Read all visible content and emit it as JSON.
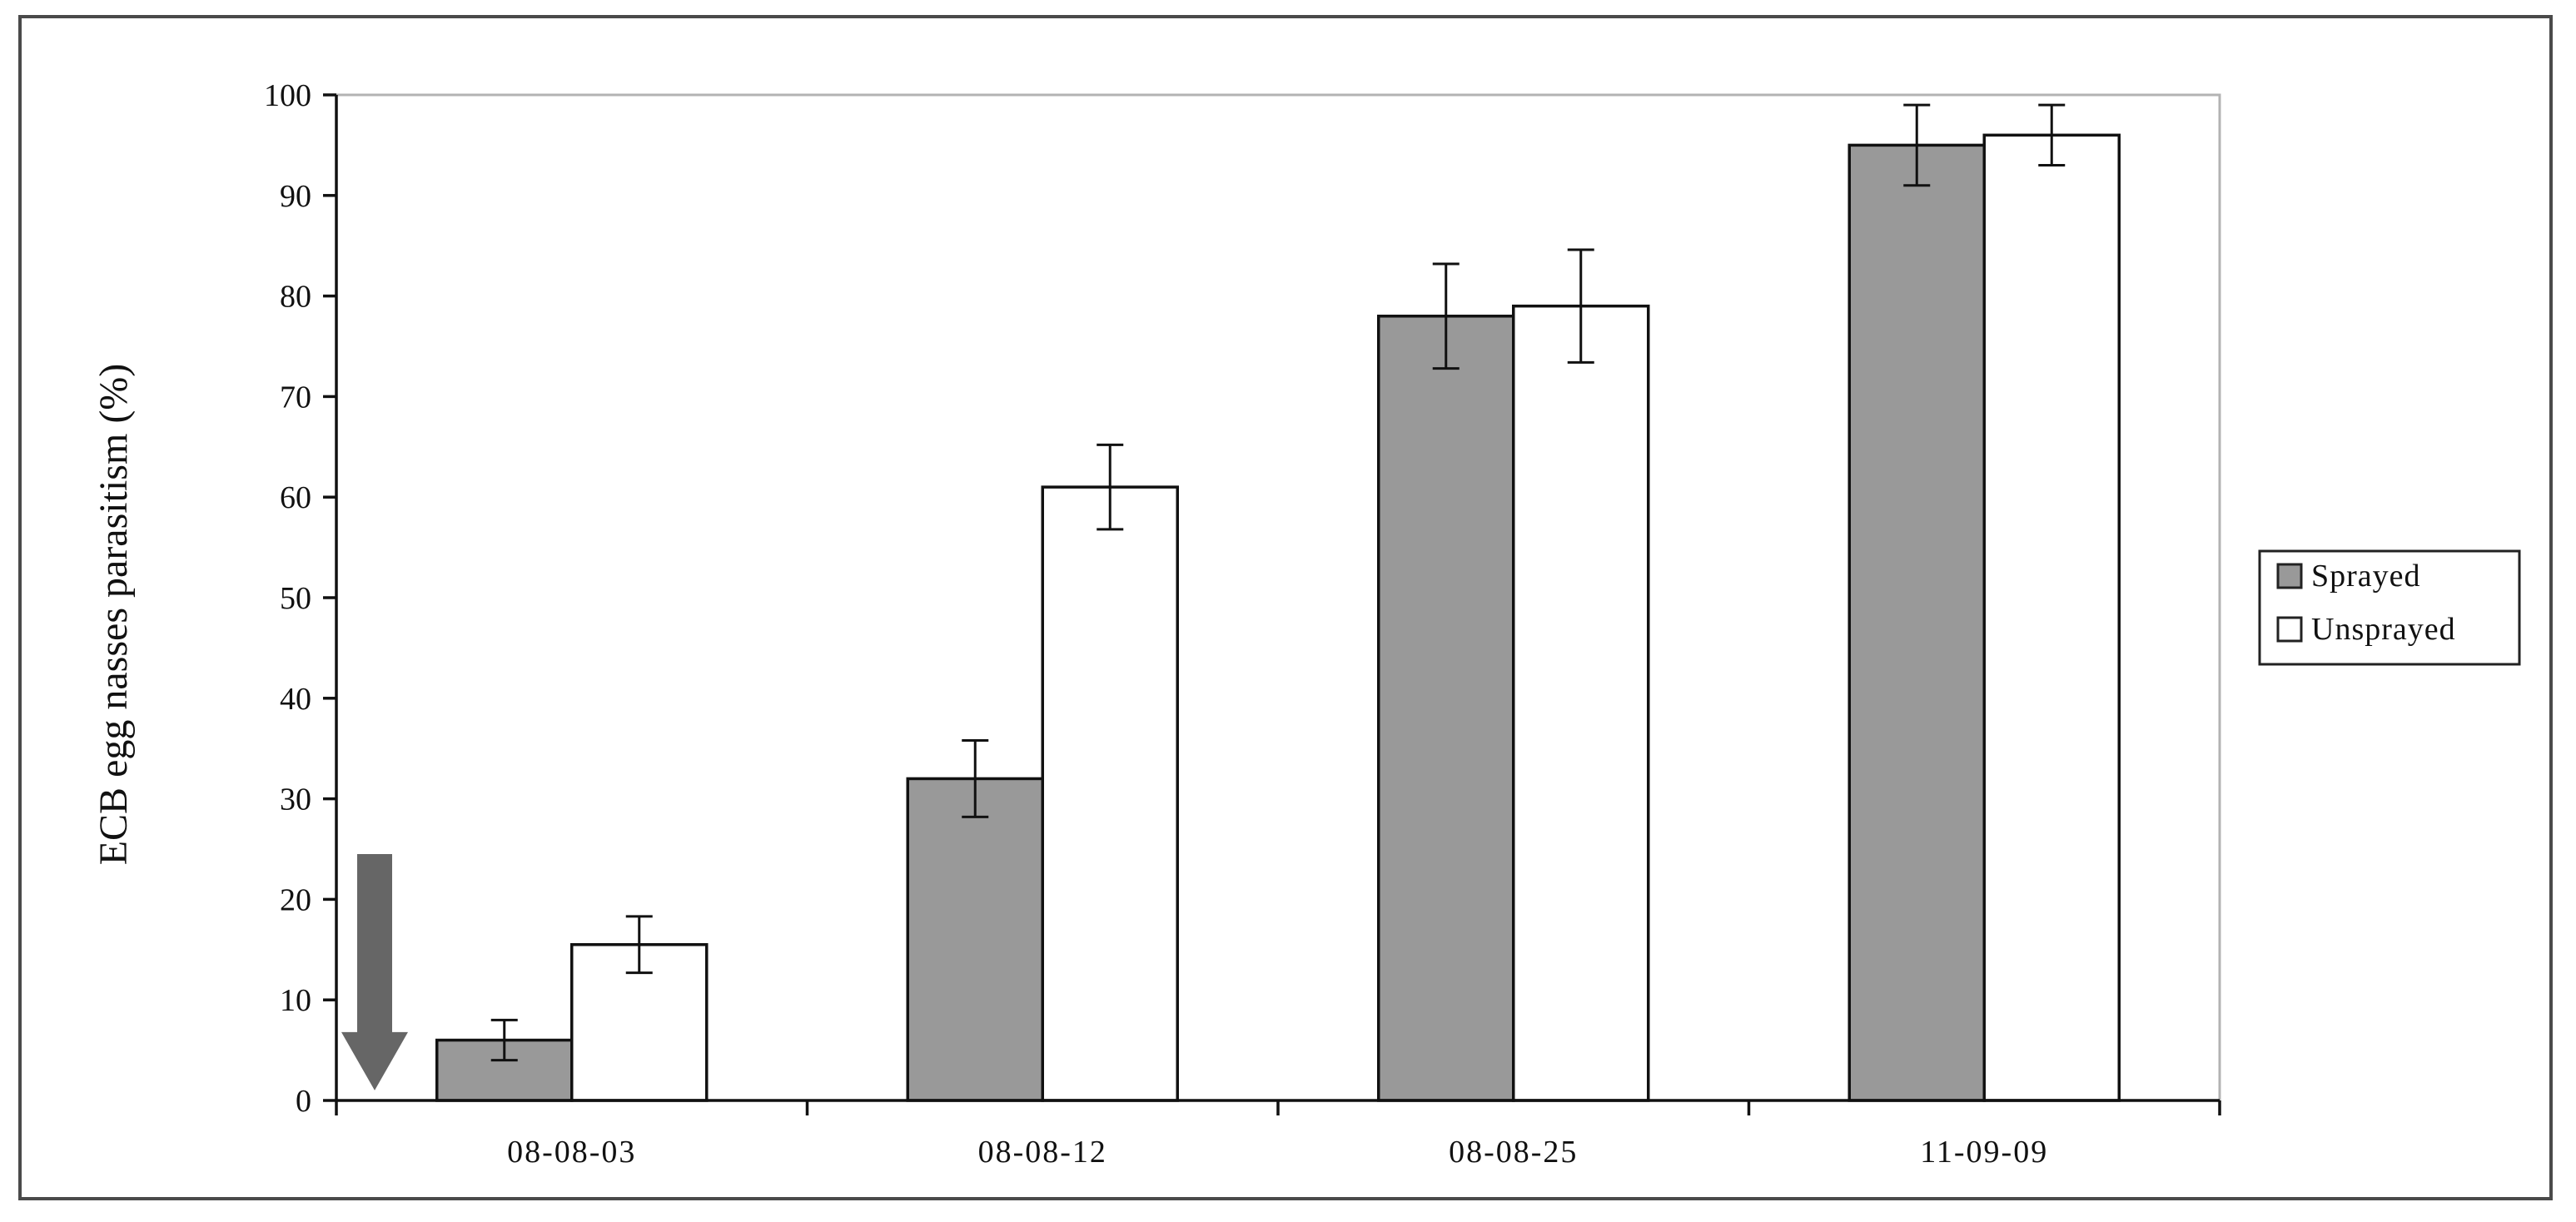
{
  "chart_data": {
    "type": "bar",
    "categories": [
      "08-08-03",
      "08-08-12",
      "08-08-25",
      "11-09-09"
    ],
    "series": [
      {
        "name": "Sprayed",
        "values": [
          6,
          32,
          78,
          95
        ],
        "error": [
          2,
          3.8,
          5.2,
          4
        ],
        "color": "#999999"
      },
      {
        "name": "Unsprayed",
        "values": [
          15.5,
          61,
          79,
          96
        ],
        "error": [
          2.8,
          4.2,
          5.6,
          3
        ],
        "color": "#ffffff"
      }
    ],
    "title": "",
    "xlabel": "",
    "ylabel": "ECB egg nasses parasitism  (%)",
    "ylim": [
      0,
      100
    ],
    "yticks": [
      0,
      10,
      20,
      30,
      40,
      50,
      60,
      70,
      80,
      90,
      100
    ],
    "grid": false,
    "legend_placement": "right",
    "annotations": [
      {
        "type": "arrow",
        "direction": "down",
        "category": "08-08-03",
        "color": "#666666",
        "from_value": 24.5,
        "to_value": 1
      }
    ]
  }
}
